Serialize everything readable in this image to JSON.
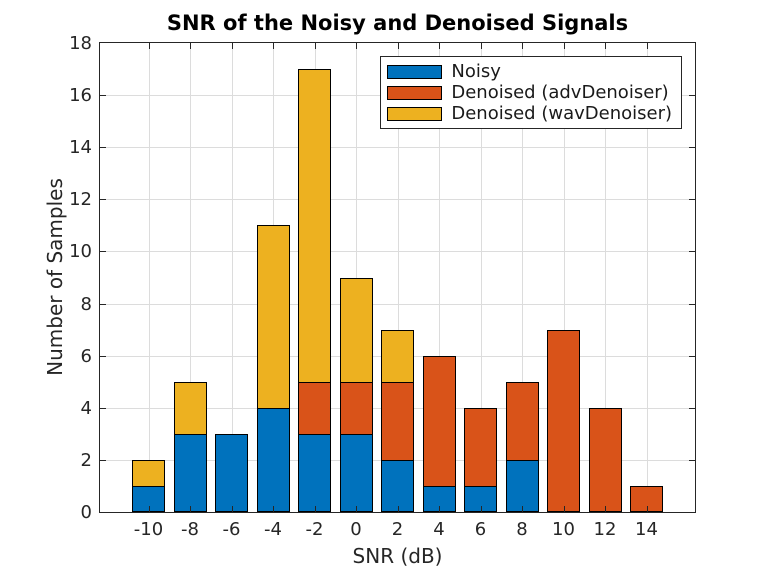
{
  "chart_data": {
    "type": "bar",
    "stacked": true,
    "title": "SNR of the Noisy and Denoised Signals",
    "xlabel": "SNR (dB)",
    "ylabel": "Number of Samples",
    "categories": [
      "-10",
      "-8",
      "-6",
      "-4",
      "-2",
      "0",
      "2",
      "4",
      "6",
      "8",
      "10",
      "12",
      "14"
    ],
    "series": [
      {
        "name": "Noisy",
        "color": "#0072BD",
        "values": [
          1,
          3,
          3,
          4,
          3,
          3,
          2,
          1,
          1,
          2,
          0,
          0,
          0
        ]
      },
      {
        "name": "Denoised (advDenoiser)",
        "color": "#D95319",
        "values": [
          0,
          0,
          0,
          0,
          2,
          2,
          3,
          5,
          3,
          3,
          7,
          4,
          1
        ]
      },
      {
        "name": "Denoised (wavDenoiser)",
        "color": "#EDB120",
        "values": [
          1,
          2,
          0,
          7,
          12,
          4,
          2,
          0,
          0,
          0,
          0,
          0,
          0
        ]
      }
    ],
    "totals": [
      2,
      5,
      3,
      11,
      17,
      9,
      7,
      6,
      4,
      5,
      7,
      4,
      1
    ],
    "ylim": [
      0,
      18
    ],
    "ytick_step": 2,
    "yticks": [
      "0",
      "2",
      "4",
      "6",
      "8",
      "10",
      "12",
      "14",
      "16",
      "18"
    ],
    "grid": true,
    "legend_position": "top-right",
    "colors": {
      "bar_edge": "#000000",
      "grid": "#DCDCDC",
      "axis": "#262626",
      "text": "#262626",
      "background": "#FFFFFF"
    }
  }
}
